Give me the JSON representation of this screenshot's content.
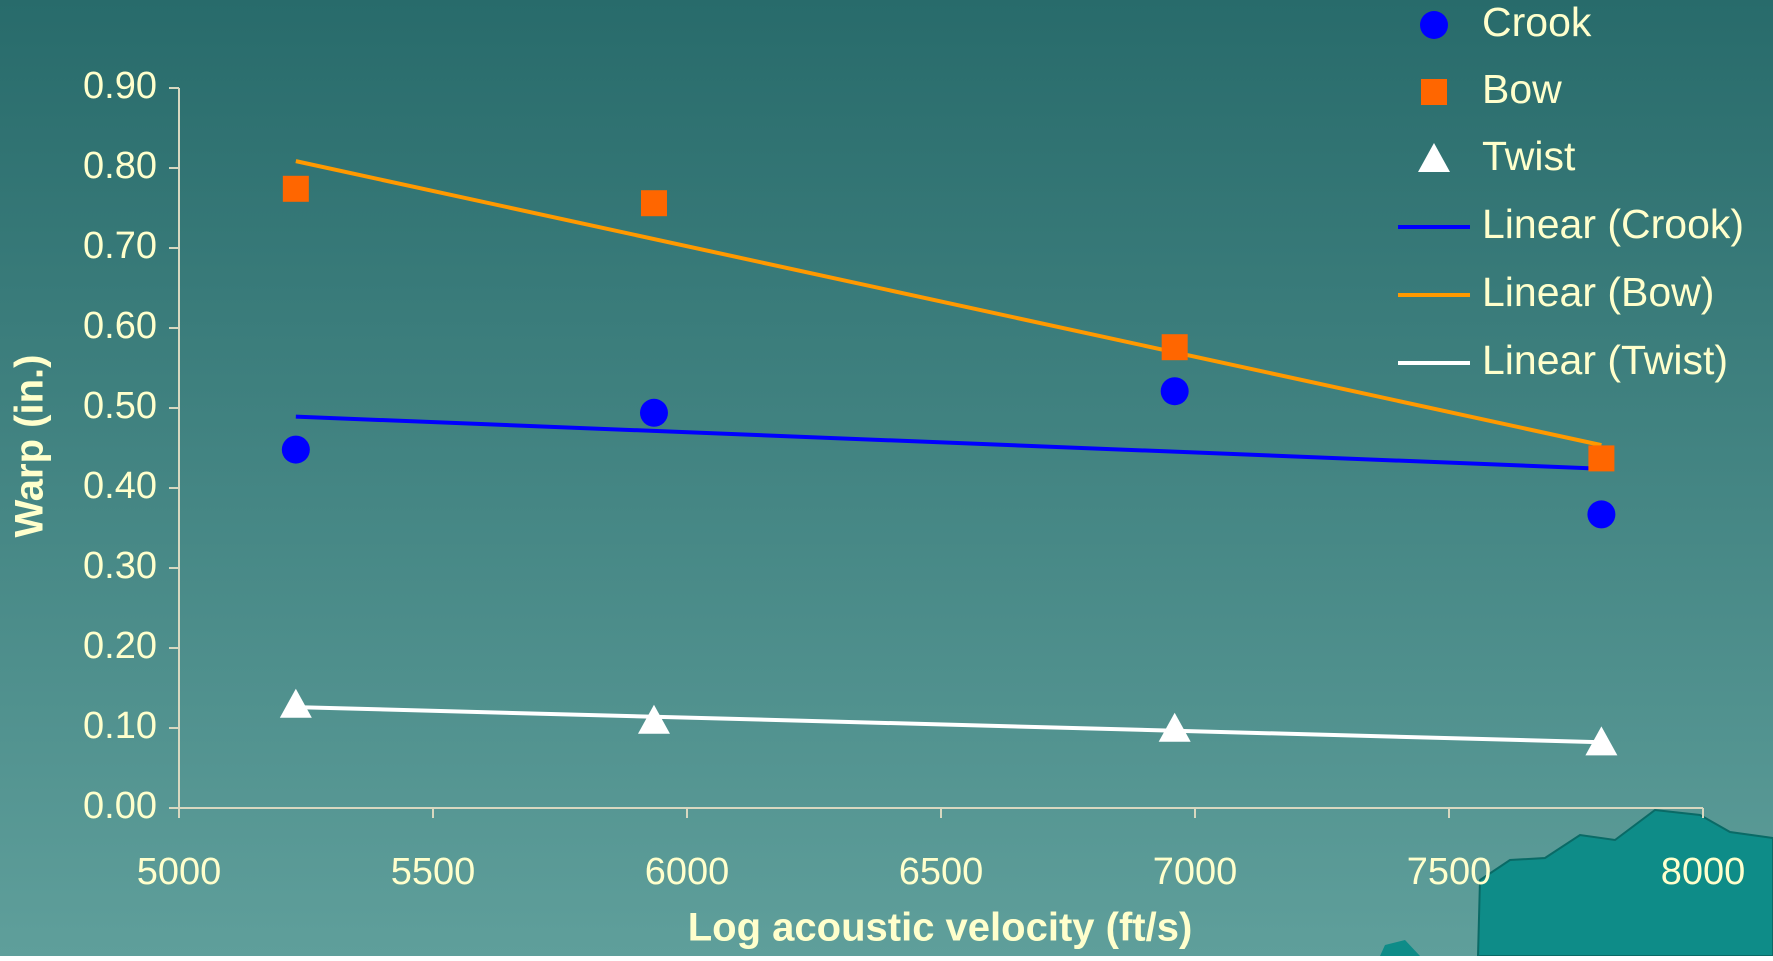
{
  "chart_data": {
    "type": "scatter",
    "x_label": "Log acoustic velocity (ft/s)",
    "y_label": "Warp (in.)",
    "x": [
      5230,
      5935,
      6960,
      7800
    ],
    "series": [
      {
        "name": "Crook",
        "marker": "circle",
        "color": "#0000ff",
        "values": [
          0.448,
          0.494,
          0.521,
          0.367
        ],
        "trendline_name": "Linear (Crook)",
        "trendline_color": "#0000ff"
      },
      {
        "name": "Bow",
        "marker": "square",
        "color": "#ff6600",
        "values": [
          0.774,
          0.756,
          0.576,
          0.437
        ],
        "trendline_name": "Linear (Bow)",
        "trendline_color": "#ff9900"
      },
      {
        "name": "Twist",
        "marker": "triangle",
        "color": "#ffffff",
        "values": [
          0.129,
          0.109,
          0.099,
          0.082
        ],
        "trendline_name": "Linear (Twist)",
        "trendline_color": "#ffffff"
      }
    ],
    "xlim": [
      5000,
      8000
    ],
    "xticks": [
      5000,
      5500,
      6000,
      6500,
      7000,
      7500,
      8000
    ],
    "ylim": [
      0,
      0.9
    ],
    "yticks": [
      {
        "value": 0,
        "label": "0.00"
      },
      {
        "value": 0.1,
        "label": "0.10"
      },
      {
        "value": 0.2,
        "label": "0.20"
      },
      {
        "value": 0.3,
        "label": "0.30"
      },
      {
        "value": 0.4,
        "label": "0.40"
      },
      {
        "value": 0.5,
        "label": "0.50"
      },
      {
        "value": 0.6,
        "label": "0.60"
      },
      {
        "value": 0.7,
        "label": "0.70"
      },
      {
        "value": 0.8,
        "label": "0.80"
      },
      {
        "value": 0.9,
        "label": "0.90"
      }
    ]
  }
}
